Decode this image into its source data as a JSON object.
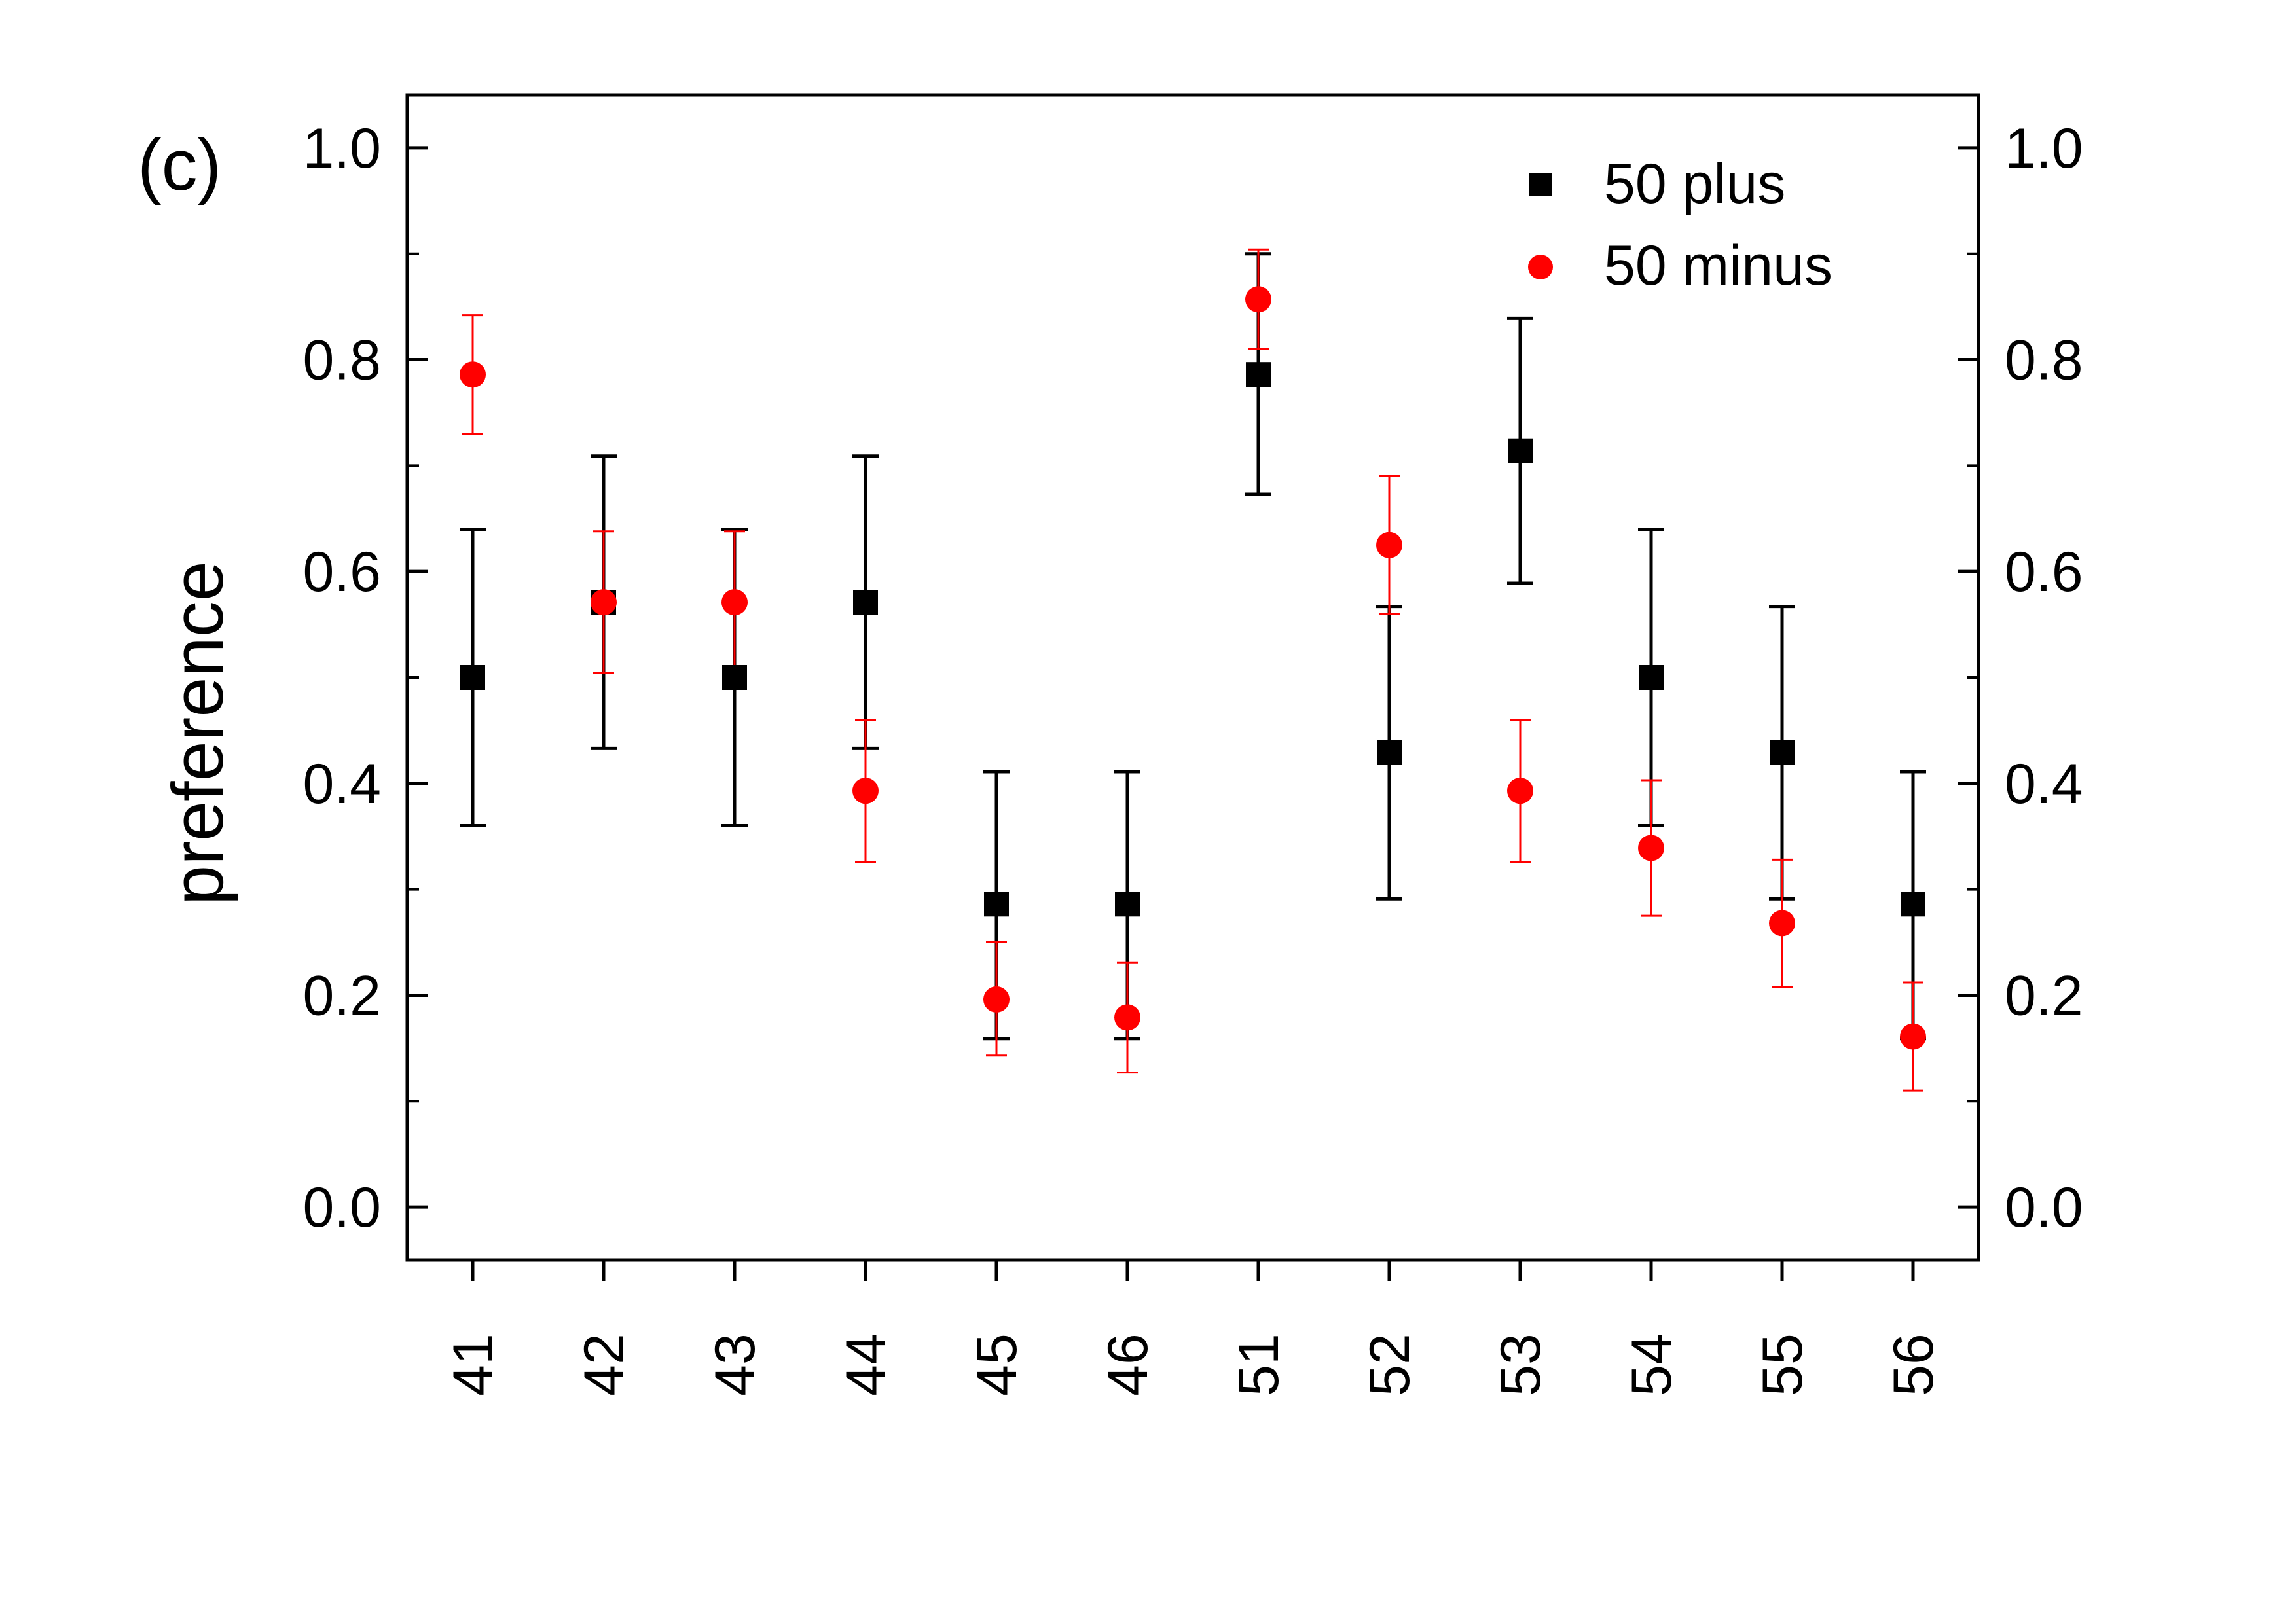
{
  "chart_data": {
    "type": "scatter",
    "panel_label": "(c)",
    "xlabel": "",
    "ylabel": "preference",
    "categories": [
      "41",
      "42",
      "43",
      "44",
      "45",
      "46",
      "51",
      "52",
      "53",
      "54",
      "55",
      "56"
    ],
    "ylim": [
      -0.05,
      1.05
    ],
    "yticks": [
      "0.0",
      "0.2",
      "0.4",
      "0.6",
      "0.8",
      "1.0"
    ],
    "ytick_values": [
      0.0,
      0.2,
      0.4,
      0.6,
      0.8,
      1.0
    ],
    "right_axis_mirrored": true,
    "grid": false,
    "legend_position": "top-right",
    "series": [
      {
        "name": "50 plus",
        "marker": "square",
        "color": "#000000",
        "values": [
          0.5,
          0.571,
          0.5,
          0.571,
          0.286,
          0.286,
          0.786,
          0.429,
          0.714,
          0.5,
          0.429,
          0.286
        ],
        "err_low": [
          0.36,
          0.433,
          0.36,
          0.433,
          0.159,
          0.159,
          0.673,
          0.291,
          0.589,
          0.36,
          0.291,
          0.159
        ],
        "err_high": [
          0.64,
          0.709,
          0.64,
          0.709,
          0.411,
          0.411,
          0.9,
          0.567,
          0.839,
          0.64,
          0.567,
          0.411
        ]
      },
      {
        "name": "50 minus",
        "marker": "circle",
        "color": "#ff0000",
        "values": [
          0.786,
          0.571,
          0.571,
          0.393,
          0.196,
          0.179,
          0.857,
          0.625,
          0.393,
          0.339,
          0.268,
          0.161
        ],
        "err_low": [
          0.73,
          0.504,
          0.504,
          0.326,
          0.143,
          0.127,
          0.81,
          0.56,
          0.326,
          0.275,
          0.208,
          0.11
        ],
        "err_high": [
          0.842,
          0.638,
          0.638,
          0.46,
          0.25,
          0.231,
          0.904,
          0.69,
          0.46,
          0.403,
          0.328,
          0.212
        ]
      }
    ]
  }
}
